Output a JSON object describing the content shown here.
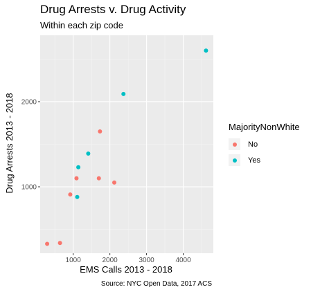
{
  "title": "Drug Arrests v. Drug Activity",
  "subtitle": "Within each zip code",
  "caption": "Source: NYC Open Data, 2017 ACS",
  "legend": {
    "title": "MajorityNonWhite",
    "items": [
      {
        "label": "No",
        "color": "#F8766D"
      },
      {
        "label": "Yes",
        "color": "#00BFC4"
      }
    ]
  },
  "chart_data": {
    "type": "scatter",
    "xlabel": "EMS Calls 2013 - 2018",
    "ylabel": "Drug Arrests 2013 - 2018",
    "xlim": [
      100,
      4820
    ],
    "ylim": [
      220,
      2780
    ],
    "x_ticks": [
      "1000",
      "2000",
      "3000",
      "4000"
    ],
    "y_ticks": [
      "1000",
      "2000"
    ],
    "grid": true,
    "legend_position": "right",
    "series": [
      {
        "name": "No",
        "color": "#F8766D",
        "points": [
          {
            "x": 290,
            "y": 330
          },
          {
            "x": 640,
            "y": 340
          },
          {
            "x": 920,
            "y": 910
          },
          {
            "x": 1090,
            "y": 1100
          },
          {
            "x": 1700,
            "y": 1100
          },
          {
            "x": 1730,
            "y": 1650
          },
          {
            "x": 2120,
            "y": 1050
          }
        ]
      },
      {
        "name": "Yes",
        "color": "#00BFC4",
        "points": [
          {
            "x": 1110,
            "y": 880
          },
          {
            "x": 1140,
            "y": 1230
          },
          {
            "x": 1410,
            "y": 1390
          },
          {
            "x": 2370,
            "y": 2090
          },
          {
            "x": 4620,
            "y": 2600
          }
        ]
      }
    ]
  }
}
